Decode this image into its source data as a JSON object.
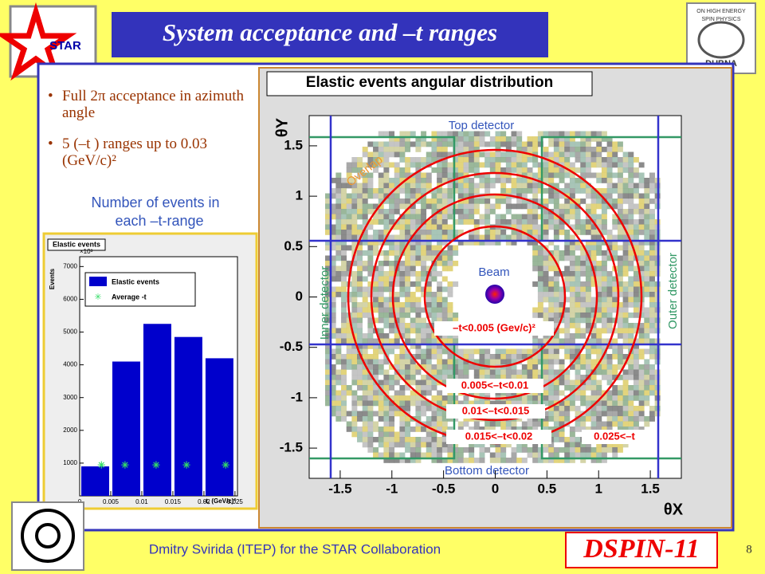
{
  "header": {
    "title": "System acceptance and –t ranges",
    "star_logo": "STAR",
    "workshop_logo": [
      "ON HIGH ENERGY",
      "SPIN PHYSICS",
      "DUBNA"
    ]
  },
  "bullets": [
    "Full 2π acceptance in azimuth angle",
    "5 (–t ) ranges up to 0.03 (GeV/c)²"
  ],
  "caption": [
    "Number of events in",
    "each –t-range"
  ],
  "histogram": {
    "type": "histogram",
    "title": "Elastic events",
    "ylabel": "Events",
    "xlabel": "-t, (GeV/c)²",
    "y_multiplier": "×10³",
    "bins": [
      0,
      0.005,
      0.01,
      0.015,
      0.02,
      0.025
    ],
    "series": [
      {
        "name": "Elastic events",
        "color": "#0000cc",
        "values": [
          900,
          4100,
          5250,
          4850,
          4200
        ]
      },
      {
        "name": "Average -t",
        "color": "#33dd66",
        "x": [
          0.0035,
          0.0073,
          0.0123,
          0.0172,
          0.0235
        ],
        "values": [
          920,
          920,
          920,
          920,
          920
        ]
      }
    ],
    "xlim": [
      0,
      0.0254
    ],
    "ylim": [
      0,
      7300
    ],
    "xticks": [
      0,
      0.005,
      0.01,
      0.015,
      0.02,
      0.025
    ],
    "yticks": [
      1000,
      2000,
      3000,
      4000,
      5000,
      6000,
      7000
    ]
  },
  "angular_plot": {
    "title": "Elastic events angular distribution",
    "ylabel": "θY",
    "xlabel": "θX",
    "xlim": [
      -1.8,
      1.8
    ],
    "ylim": [
      -1.8,
      1.8
    ],
    "xticks": [
      -1.5,
      -1,
      -0.5,
      0,
      0.5,
      1,
      1.5
    ],
    "yticks": [
      -1.5,
      -1,
      -0.5,
      0,
      0.5,
      1,
      1.5
    ],
    "labels": {
      "top": "Top detector",
      "bottom": "Bottom detector",
      "inner": "Inner detector",
      "outer": "Outer detector",
      "overlap": "Overlap",
      "beam": "Beam"
    },
    "ranges": [
      "–t<0.005 (Gev/c)²",
      "0.005<–t<0.01",
      "0.01<–t<0.015",
      "0.015<–t<0.02",
      "0.025<–t"
    ]
  },
  "footer": {
    "author": "Dmitry Svirida (ITEP) for the STAR Collaboration",
    "logo": "DSPIN-11",
    "page": "8"
  }
}
